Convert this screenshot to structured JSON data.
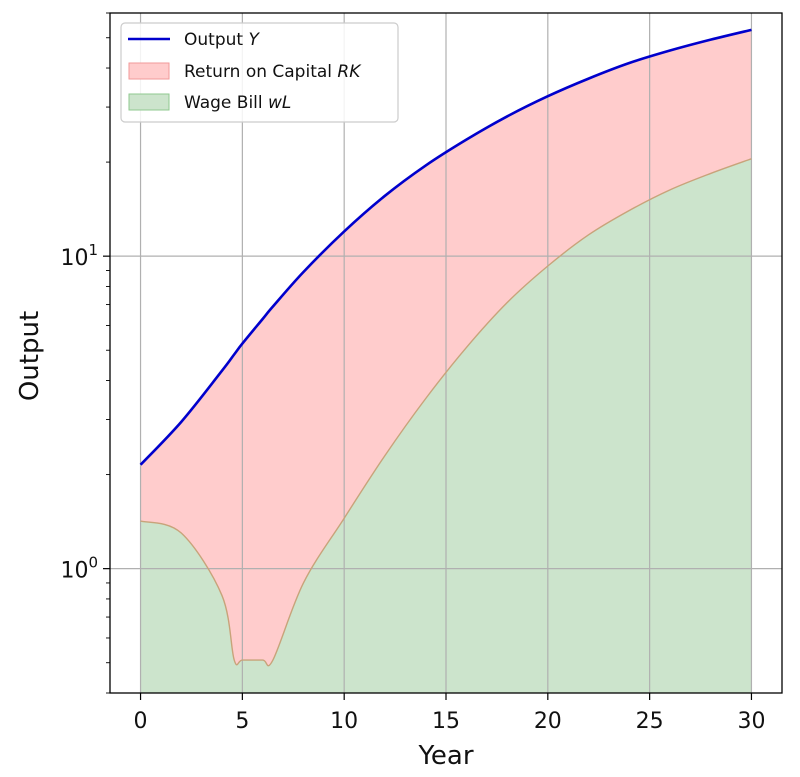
{
  "chart_data": {
    "type": "area",
    "title": "",
    "xlabel": "Year",
    "ylabel": "Output",
    "x_scale": "linear",
    "y_scale": "log",
    "xlim": [
      -1.5,
      31.5
    ],
    "ylim": [
      0.4,
      60
    ],
    "xticks": [
      0,
      5,
      10,
      15,
      20,
      25,
      30
    ],
    "xtick_labels": [
      "0",
      "5",
      "10",
      "15",
      "20",
      "25",
      "30"
    ],
    "yticks": [
      1,
      10
    ],
    "ytick_labels": [
      {
        "base": "10",
        "exp": "0"
      },
      {
        "base": "10",
        "exp": "1"
      }
    ],
    "grid": true,
    "legend": {
      "placement": "upper-left",
      "entries": [
        {
          "key": "Y",
          "label": "Output ",
          "math": "Y",
          "kind": "line"
        },
        {
          "key": "RK",
          "label": "Return on Capital ",
          "math": "RK",
          "kind": "patch"
        },
        {
          "key": "wL",
          "label": "Wage Bill ",
          "math": "wL",
          "kind": "patch"
        }
      ]
    },
    "x": [
      0,
      2,
      4,
      4.6,
      5,
      6,
      6.5,
      8,
      10,
      12,
      14,
      16,
      18,
      20,
      22,
      24,
      26,
      28,
      30
    ],
    "series": [
      {
        "name": "Output Y",
        "kind": "line",
        "values": [
          2.15,
          2.95,
          4.3,
          4.85,
          5.25,
          6.3,
          6.9,
          8.9,
          12.0,
          15.6,
          19.5,
          23.6,
          28.0,
          32.5,
          37.0,
          41.5,
          45.5,
          49.3,
          53.0
        ]
      },
      {
        "name": "Wage Bill wL",
        "kind": "area",
        "values": [
          1.42,
          1.3,
          0.82,
          0.51,
          0.51,
          0.51,
          0.51,
          0.9,
          1.45,
          2.3,
          3.5,
          5.1,
          7.1,
          9.3,
          11.7,
          14.0,
          16.3,
          18.4,
          20.5
        ]
      }
    ],
    "colors": {
      "output_line": "#0000cc",
      "capital_fill": "#ffcccc",
      "capital_legend_edge": "#f29a9a",
      "wage_fill": "#cce4cc",
      "wage_legend_edge": "#8fc98f",
      "boundary_line": "#c8a37a",
      "grid": "#b0b0b0"
    }
  }
}
